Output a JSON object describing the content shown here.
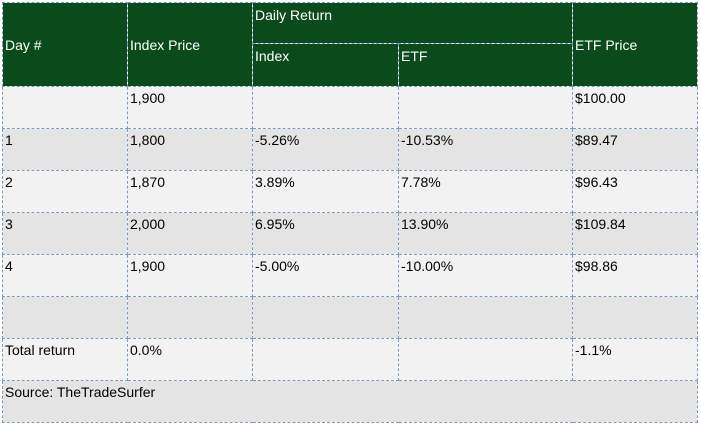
{
  "headers": {
    "day": "Day #",
    "index_price": "Index Price",
    "daily_return": "Daily Return",
    "index": "Index",
    "etf": "ETF",
    "etf_price": "ETF Price"
  },
  "rows": [
    {
      "day": "",
      "index_price": "1,900",
      "index_return": "",
      "etf_return": "",
      "etf_price": "$100.00"
    },
    {
      "day": "1",
      "index_price": "1,800",
      "index_return": "-5.26%",
      "etf_return": "-10.53%",
      "etf_price": "$89.47"
    },
    {
      "day": "2",
      "index_price": "1,870",
      "index_return": "3.89%",
      "etf_return": "7.78%",
      "etf_price": "$96.43"
    },
    {
      "day": "3",
      "index_price": "2,000",
      "index_return": "6.95%",
      "etf_return": "13.90%",
      "etf_price": "$109.84"
    },
    {
      "day": "4",
      "index_price": "1,900",
      "index_return": "-5.00%",
      "etf_return": "-10.00%",
      "etf_price": "$98.86"
    },
    {
      "day": "",
      "index_price": "",
      "index_return": "",
      "etf_return": "",
      "etf_price": ""
    }
  ],
  "total": {
    "label": "Total return",
    "index_price": "0.0%",
    "etf_price": "-1.1%"
  },
  "source": "Source: TheTradeSurfer",
  "colors": {
    "header_bg": "#0b4b1b",
    "header_text": "#ffffff",
    "row_light": "#f2f2f2",
    "row_dark": "#e4e4e4",
    "grid_line": "#7a9cc6"
  }
}
